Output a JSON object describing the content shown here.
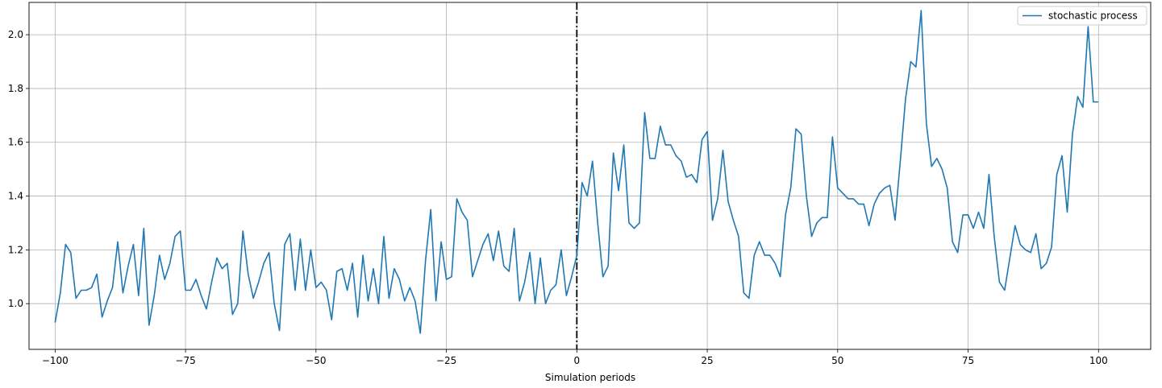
{
  "chart_data": {
    "type": "line",
    "title": "",
    "xlabel": "Simulation periods",
    "ylabel": "",
    "xlim": [
      -105,
      110
    ],
    "ylim": [
      0.83,
      2.12
    ],
    "x_ticks": [
      -100,
      -75,
      -50,
      -25,
      0,
      25,
      50,
      75,
      100
    ],
    "x_tick_labels": [
      "−100",
      "−75",
      "−50",
      "−25",
      "0",
      "25",
      "50",
      "75",
      "100"
    ],
    "y_ticks": [
      1.0,
      1.2,
      1.4,
      1.6,
      1.8,
      2.0
    ],
    "y_tick_labels": [
      "1.0",
      "1.2",
      "1.4",
      "1.6",
      "1.8",
      "2.0"
    ],
    "grid": true,
    "legend_position": "top-right",
    "vline": {
      "x": 0,
      "style": "dash-dot",
      "color": "#000000"
    },
    "series": [
      {
        "name": "stochastic process",
        "color": "#1f77b4",
        "x_start": -100,
        "x_step": 1,
        "values": [
          0.93,
          1.04,
          1.22,
          1.19,
          1.02,
          1.05,
          1.05,
          1.06,
          1.11,
          0.95,
          1.01,
          1.06,
          1.23,
          1.04,
          1.14,
          1.22,
          1.03,
          1.28,
          0.92,
          1.03,
          1.18,
          1.09,
          1.15,
          1.25,
          1.27,
          1.05,
          1.05,
          1.09,
          1.03,
          0.98,
          1.08,
          1.17,
          1.13,
          1.15,
          0.96,
          1.0,
          1.27,
          1.11,
          1.02,
          1.08,
          1.15,
          1.19,
          1.0,
          0.9,
          1.22,
          1.26,
          1.05,
          1.24,
          1.05,
          1.2,
          1.06,
          1.08,
          1.05,
          0.94,
          1.12,
          1.13,
          1.05,
          1.15,
          0.95,
          1.18,
          1.01,
          1.13,
          1.0,
          1.25,
          1.02,
          1.13,
          1.09,
          1.01,
          1.06,
          1.01,
          0.89,
          1.16,
          1.35,
          1.01,
          1.23,
          1.09,
          1.1,
          1.39,
          1.34,
          1.31,
          1.1,
          1.16,
          1.22,
          1.26,
          1.16,
          1.27,
          1.14,
          1.12,
          1.28,
          1.01,
          1.08,
          1.19,
          1.0,
          1.17,
          1.0,
          1.05,
          1.07,
          1.2,
          1.03,
          1.1,
          1.18,
          1.45,
          1.4,
          1.53,
          1.3,
          1.1,
          1.14,
          1.56,
          1.42,
          1.59,
          1.3,
          1.28,
          1.3,
          1.71,
          1.54,
          1.54,
          1.66,
          1.59,
          1.59,
          1.55,
          1.53,
          1.47,
          1.48,
          1.45,
          1.61,
          1.64,
          1.31,
          1.39,
          1.57,
          1.38,
          1.31,
          1.25,
          1.04,
          1.02,
          1.18,
          1.23,
          1.18,
          1.18,
          1.15,
          1.1,
          1.33,
          1.43,
          1.65,
          1.63,
          1.4,
          1.25,
          1.3,
          1.32,
          1.32,
          1.62,
          1.43,
          1.41,
          1.39,
          1.39,
          1.37,
          1.37,
          1.29,
          1.37,
          1.41,
          1.43,
          1.44,
          1.31,
          1.53,
          1.76,
          1.9,
          1.88,
          2.09,
          1.67,
          1.51,
          1.54,
          1.5,
          1.43,
          1.23,
          1.19,
          1.33,
          1.33,
          1.28,
          1.34,
          1.28,
          1.48,
          1.25,
          1.08,
          1.05,
          1.17,
          1.29,
          1.22,
          1.2,
          1.19,
          1.26,
          1.13,
          1.15,
          1.21,
          1.48,
          1.55,
          1.34,
          1.63,
          1.77,
          1.73,
          2.03,
          1.75,
          1.75
        ]
      }
    ]
  }
}
